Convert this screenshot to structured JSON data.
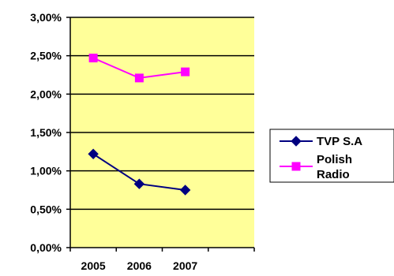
{
  "chart_data": {
    "type": "line",
    "categories": [
      "2005",
      "2006",
      "2007"
    ],
    "series": [
      {
        "name": "TVP S.A",
        "values": [
          1.22,
          0.83,
          0.75
        ],
        "color": "#000080",
        "marker": "diamond"
      },
      {
        "name": "Polish Radio",
        "values": [
          2.47,
          2.21,
          2.29
        ],
        "color": "#FF00FF",
        "marker": "square"
      }
    ],
    "ylim": [
      0,
      3.0
    ],
    "y_ticks": [
      "0,00%",
      "0,50%",
      "1,00%",
      "1,50%",
      "2,00%",
      "2,50%",
      "3,00%"
    ],
    "y_tick_values": [
      0,
      0.5,
      1.0,
      1.5,
      2.0,
      2.5,
      3.0
    ],
    "legend_labels": [
      "TVP S.A",
      "Polish",
      "Radio"
    ],
    "grid": true,
    "legend_position": "right",
    "plot_background": "#FFFF99",
    "title": "",
    "xlabel": "",
    "ylabel": ""
  }
}
